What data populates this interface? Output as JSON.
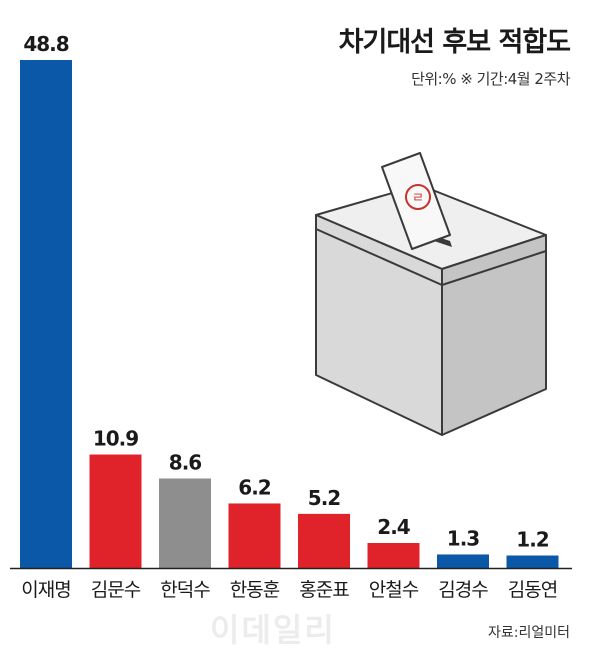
{
  "chart_data": {
    "type": "bar",
    "title": "차기대선 후보 적합도",
    "subtitle": "단위:% ※ 기간:4월 2주차",
    "source": "자료:리얼미터",
    "categories": [
      "이재명",
      "김문수",
      "한덕수",
      "한동훈",
      "홍준표",
      "안철수",
      "김경수",
      "김동연"
    ],
    "values": [
      48.8,
      10.9,
      8.6,
      6.2,
      5.2,
      2.4,
      1.3,
      1.2
    ],
    "value_labels": [
      "48.8",
      "10.9",
      "8.6",
      "6.2",
      "5.2",
      "2.4",
      "1.3",
      "1.2"
    ],
    "bar_colors": [
      "#0b57a8",
      "#e0222b",
      "#8e8e8e",
      "#e0222b",
      "#e0222b",
      "#e0222b",
      "#0b57a8",
      "#0b57a8"
    ],
    "ylim": [
      0,
      48.8
    ],
    "grid": false,
    "legend": "none"
  },
  "watermark": "이데일리",
  "colors": {
    "blue": "#0b57a8",
    "red": "#e0222b",
    "gray": "#8e8e8e",
    "axis": "#222222"
  },
  "illustration": {
    "ballot_box_icon": "ballot-box-icon",
    "ballot_mark": "ㄹ"
  }
}
